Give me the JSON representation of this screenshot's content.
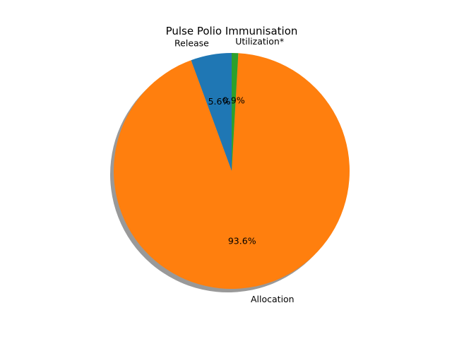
{
  "chart_data": {
    "type": "pie",
    "title": "Pulse Polio Immunisation",
    "labels": [
      "Release",
      "Allocation",
      "Utilization*"
    ],
    "values": [
      5.6,
      93.6,
      0.9
    ],
    "pct_labels": [
      "5.6%",
      "93.6%",
      "0.9%"
    ],
    "colors": [
      "#1f77b4",
      "#ff7f0e",
      "#2ca02c"
    ],
    "start_angle_deg": 90,
    "direction": "counterclockwise",
    "shadow": true
  }
}
